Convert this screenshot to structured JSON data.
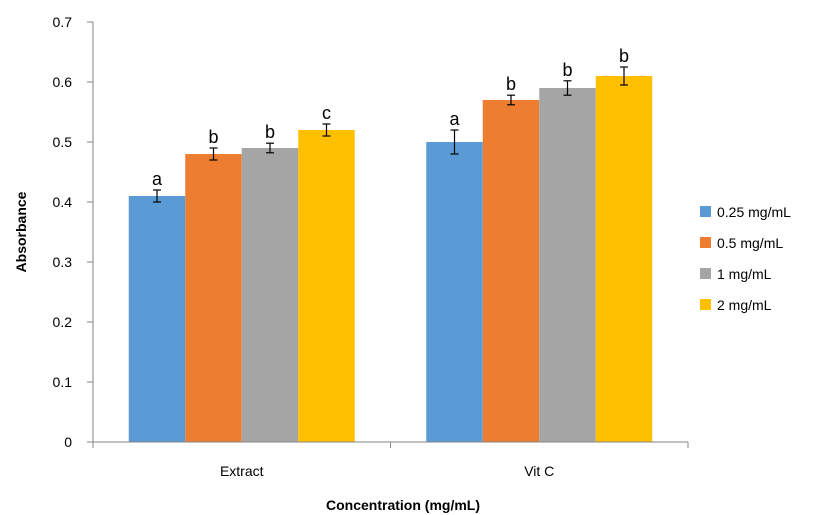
{
  "chart_data": {
    "type": "bar",
    "title": "",
    "xlabel": "Concentration (mg/mL)",
    "ylabel": "Absorbance",
    "ylim": [
      0,
      0.7
    ],
    "yticks": [
      "0",
      "0.1",
      "0.2",
      "0.3",
      "0.4",
      "0.5",
      "0.6",
      "0.7"
    ],
    "grid": false,
    "legend_position": "right",
    "categories": [
      "Extract",
      "Vit C"
    ],
    "series": [
      {
        "name": "0.25 mg/mL",
        "color": "#5B9BD5",
        "values": [
          0.41,
          0.5
        ],
        "errors": [
          0.01,
          0.02
        ],
        "labels": [
          "a",
          "a"
        ]
      },
      {
        "name": "0.5 mg/mL",
        "color": "#ED7D31",
        "values": [
          0.48,
          0.57
        ],
        "errors": [
          0.01,
          0.008
        ],
        "labels": [
          "b",
          "b"
        ]
      },
      {
        "name": "1 mg/mL",
        "color": "#A5A5A5",
        "values": [
          0.49,
          0.59
        ],
        "errors": [
          0.008,
          0.012
        ],
        "labels": [
          "b",
          "b"
        ]
      },
      {
        "name": "2 mg/mL",
        "color": "#FFC000",
        "values": [
          0.52,
          0.61
        ],
        "errors": [
          0.01,
          0.015
        ],
        "labels": [
          "c",
          "b"
        ]
      }
    ]
  }
}
